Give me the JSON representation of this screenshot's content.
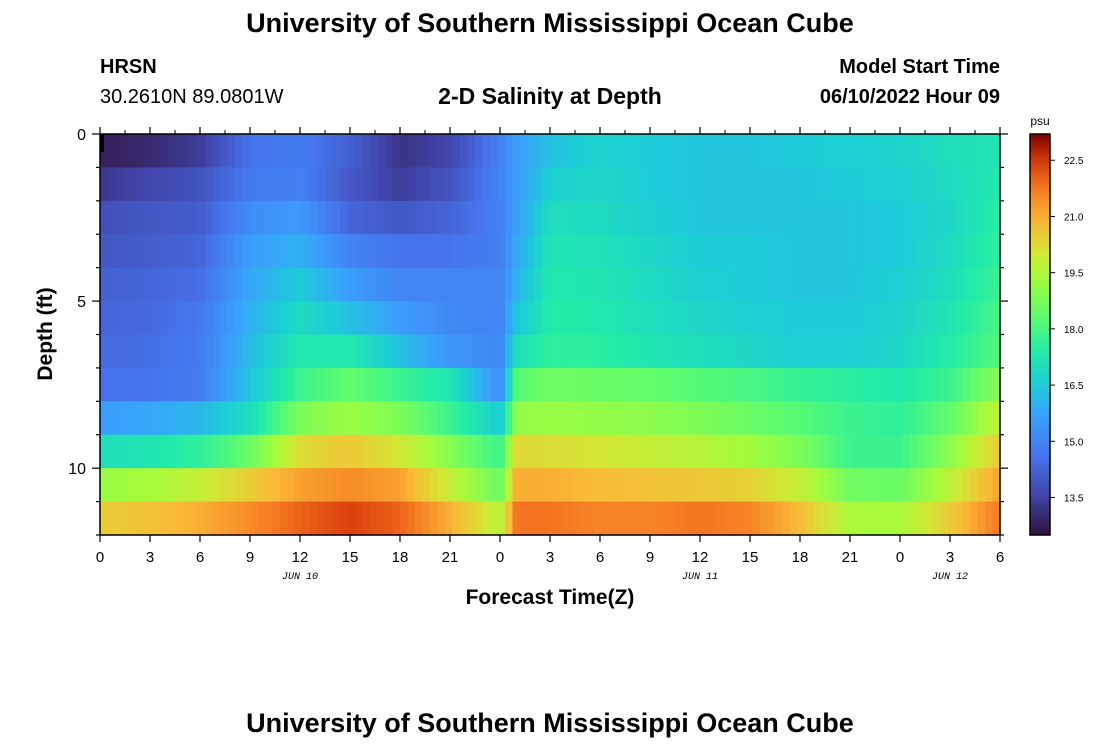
{
  "header": {
    "title": "University of Southern Mississippi Ocean Cube",
    "station": "HRSN",
    "coordinates": "30.2610N  89.0801W",
    "subtitle": "2-D Salinity at Depth",
    "model_label": "Model Start Time",
    "model_time": "06/10/2022 Hour 09"
  },
  "footer": {
    "title": "University of Southern Mississippi Ocean Cube"
  },
  "chart_data": {
    "type": "heatmap",
    "title": "2-D Salinity at Depth",
    "xlabel": "Forecast Time(Z)",
    "ylabel": "Depth (ft)",
    "x_range_hours": [
      0,
      54
    ],
    "y_range_ft": [
      0,
      12
    ],
    "x_tick_hours": [
      0,
      3,
      6,
      9,
      12,
      15,
      18,
      21,
      24,
      27,
      30,
      33,
      36,
      39,
      42,
      45,
      48,
      51,
      54
    ],
    "x_tick_labels": [
      "0",
      "3",
      "6",
      "9",
      "12",
      "15",
      "18",
      "21",
      "0",
      "3",
      "6",
      "9",
      "12",
      "15",
      "18",
      "21",
      "0",
      "3",
      "6"
    ],
    "date_labels": [
      {
        "text": "JUN 10",
        "hour": 12
      },
      {
        "text": "JUN 11",
        "hour": 36
      },
      {
        "text": "JUN 12",
        "hour": 51
      }
    ],
    "y_ticks": [
      0,
      5,
      10
    ],
    "y_tick_labels": [
      "0",
      "5",
      "10"
    ],
    "colorbar": {
      "unit": "psu",
      "min": 12.5,
      "max": 23.2,
      "ticks": [
        13.5,
        15.0,
        16.5,
        18.0,
        19.5,
        21.0,
        22.5
      ],
      "tick_labels": [
        "13.5",
        "15.0",
        "16.5",
        "18.0",
        "19.5",
        "21.0",
        "22.5"
      ]
    },
    "layer_depths_ft": [
      0.5,
      1.5,
      2.5,
      3.5,
      4.5,
      5.5,
      6.5,
      7.5,
      8.5,
      9.5,
      10.5,
      11.5
    ],
    "keyframe_hours": [
      0,
      3,
      6,
      9,
      12,
      15,
      18,
      21,
      24,
      25,
      27,
      30,
      33,
      36,
      39,
      42,
      45,
      48,
      51,
      54
    ],
    "salinity_psu": [
      [
        12.8,
        13.0,
        13.4,
        14.6,
        14.8,
        14.2,
        13.2,
        13.6,
        14.9,
        15.6,
        16.3,
        16.7,
        16.5,
        16.4,
        16.4,
        16.5,
        16.6,
        16.7,
        17.0,
        17.2
      ],
      [
        13.3,
        13.6,
        13.9,
        14.8,
        14.9,
        14.0,
        13.4,
        13.9,
        15.0,
        15.6,
        16.6,
        16.8,
        16.5,
        16.4,
        16.4,
        16.4,
        16.5,
        16.6,
        16.9,
        17.3
      ],
      [
        13.8,
        14.0,
        14.1,
        15.2,
        15.5,
        14.3,
        14.0,
        14.3,
        14.9,
        15.6,
        17.0,
        16.9,
        16.6,
        16.4,
        16.4,
        16.4,
        16.4,
        16.5,
        16.8,
        17.5
      ],
      [
        14.0,
        14.1,
        14.3,
        15.6,
        16.0,
        15.0,
        14.6,
        14.6,
        14.9,
        15.8,
        17.2,
        17.1,
        16.8,
        16.5,
        16.5,
        16.4,
        16.4,
        16.5,
        16.9,
        17.6
      ],
      [
        14.2,
        14.3,
        14.5,
        15.8,
        16.5,
        15.6,
        15.0,
        15.0,
        15.0,
        16.0,
        17.3,
        17.2,
        16.9,
        16.6,
        16.5,
        16.4,
        16.4,
        16.6,
        17.0,
        17.8
      ],
      [
        14.3,
        14.4,
        14.7,
        16.0,
        16.9,
        16.3,
        15.6,
        15.1,
        15.0,
        16.4,
        17.4,
        17.3,
        17.0,
        16.8,
        16.6,
        16.5,
        16.5,
        16.7,
        17.2,
        18.0
      ],
      [
        14.4,
        14.5,
        14.8,
        16.2,
        17.3,
        17.3,
        16.3,
        15.4,
        15.1,
        17.0,
        17.6,
        17.5,
        17.2,
        17.0,
        16.8,
        16.6,
        16.6,
        16.8,
        17.4,
        18.2
      ],
      [
        14.6,
        14.6,
        14.8,
        16.4,
        17.8,
        18.4,
        17.8,
        17.2,
        15.2,
        18.2,
        18.6,
        18.5,
        18.4,
        18.2,
        18.0,
        17.7,
        17.5,
        17.3,
        17.8,
        19.0
      ],
      [
        15.6,
        15.8,
        16.1,
        17.0,
        18.8,
        19.2,
        18.8,
        17.8,
        16.5,
        19.1,
        19.2,
        19.1,
        19.0,
        18.8,
        18.5,
        18.2,
        17.8,
        17.6,
        18.4,
        19.8
      ],
      [
        17.0,
        17.2,
        17.6,
        18.5,
        20.2,
        20.6,
        20.0,
        18.9,
        17.8,
        20.3,
        20.2,
        20.0,
        19.8,
        19.6,
        19.3,
        18.8,
        17.8,
        17.8,
        19.0,
        20.6
      ],
      [
        19.2,
        19.4,
        19.8,
        20.5,
        21.2,
        21.5,
        21.2,
        19.8,
        18.5,
        21.0,
        21.0,
        20.8,
        20.7,
        20.6,
        20.4,
        19.8,
        18.6,
        18.5,
        19.7,
        21.2
      ],
      [
        20.5,
        20.7,
        21.0,
        21.5,
        22.0,
        22.4,
        22.0,
        21.0,
        19.6,
        21.8,
        21.8,
        21.6,
        21.6,
        21.8,
        21.6,
        20.8,
        19.4,
        19.4,
        20.5,
        21.8
      ]
    ]
  }
}
